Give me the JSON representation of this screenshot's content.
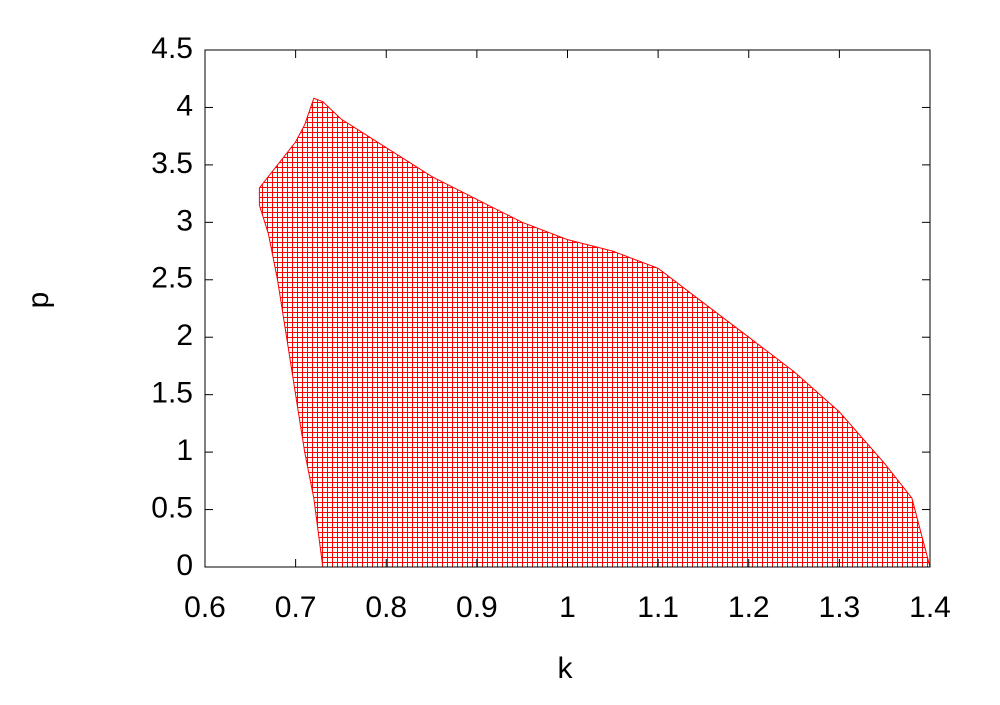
{
  "chart_data": {
    "type": "area",
    "xlabel": "k",
    "ylabel": "p",
    "x": [
      0.66,
      0.67,
      0.68,
      0.69,
      0.7,
      0.71,
      0.72,
      0.73,
      0.75,
      0.8,
      0.85,
      0.9,
      0.95,
      1.0,
      1.05,
      1.1,
      1.15,
      1.2,
      1.25,
      1.3,
      1.35,
      1.38,
      1.39,
      1.4
    ],
    "upper": [
      3.3,
      3.4,
      3.5,
      3.6,
      3.7,
      3.85,
      4.08,
      4.05,
      3.9,
      3.65,
      3.4,
      3.2,
      3.0,
      2.85,
      2.75,
      2.6,
      2.3,
      2.0,
      1.7,
      1.35,
      0.9,
      0.6,
      0.3,
      0
    ],
    "lower": [
      3.15,
      2.9,
      2.5,
      2.0,
      1.5,
      1.0,
      0.6,
      0,
      0,
      0,
      0,
      0,
      0,
      0,
      0,
      0,
      0,
      0,
      0,
      0,
      0,
      0,
      0,
      0
    ],
    "color": "#ff0000",
    "xlim": [
      0.6,
      1.4
    ],
    "xticks": [
      0.6,
      0.7,
      0.8,
      0.9,
      1,
      1.1,
      1.2,
      1.3,
      1.4
    ],
    "ylim": [
      0,
      4.5
    ],
    "yticks": [
      0,
      0.5,
      1,
      1.5,
      2,
      2.5,
      3,
      3.5,
      4,
      4.5
    ]
  }
}
